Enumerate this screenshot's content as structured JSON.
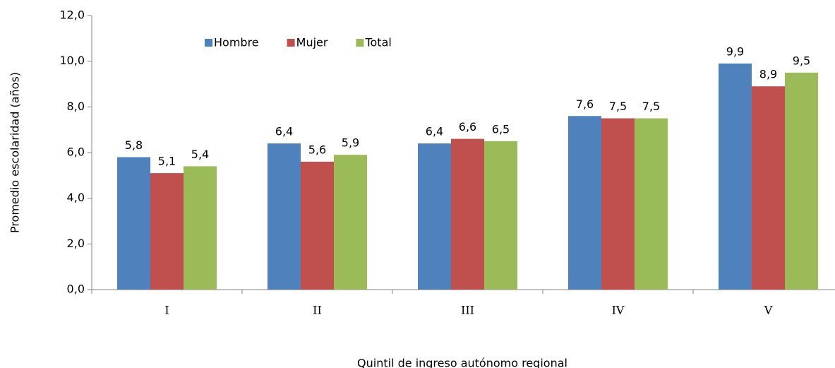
{
  "chart_data": {
    "type": "bar",
    "x_label": "Quintil de ingreso autónomo regional",
    "y_label": "Promedio escolaridad (años)",
    "categories": [
      "I",
      "II",
      "III",
      "IV",
      "V"
    ],
    "series": [
      {
        "name": "Hombre",
        "color": "#4f81bd",
        "values": [
          5.8,
          6.4,
          6.4,
          7.6,
          9.9
        ],
        "value_labels": [
          "5,8",
          "6,4",
          "6,4",
          "7,6",
          "9,9"
        ]
      },
      {
        "name": "Mujer",
        "color": "#c0504d",
        "values": [
          5.1,
          5.6,
          6.6,
          7.5,
          8.9
        ],
        "value_labels": [
          "5,1",
          "5,6",
          "6,6",
          "7,5",
          "8,9"
        ]
      },
      {
        "name": "Total",
        "color": "#9bbb59",
        "values": [
          5.4,
          5.9,
          6.5,
          7.5,
          9.5
        ],
        "value_labels": [
          "5,4",
          "5,9",
          "6,5",
          "7,5",
          "9,5"
        ]
      }
    ],
    "ylim": [
      0,
      12
    ],
    "yticks": [
      {
        "value": 0,
        "label": "0,0"
      },
      {
        "value": 2,
        "label": "2,0"
      },
      {
        "value": 4,
        "label": "4,0"
      },
      {
        "value": 6,
        "label": "6,0"
      },
      {
        "value": 8,
        "label": "8,0"
      },
      {
        "value": 10,
        "label": "10,0"
      },
      {
        "value": 12,
        "label": "12,0"
      }
    ],
    "grid": false,
    "legend": "top"
  }
}
